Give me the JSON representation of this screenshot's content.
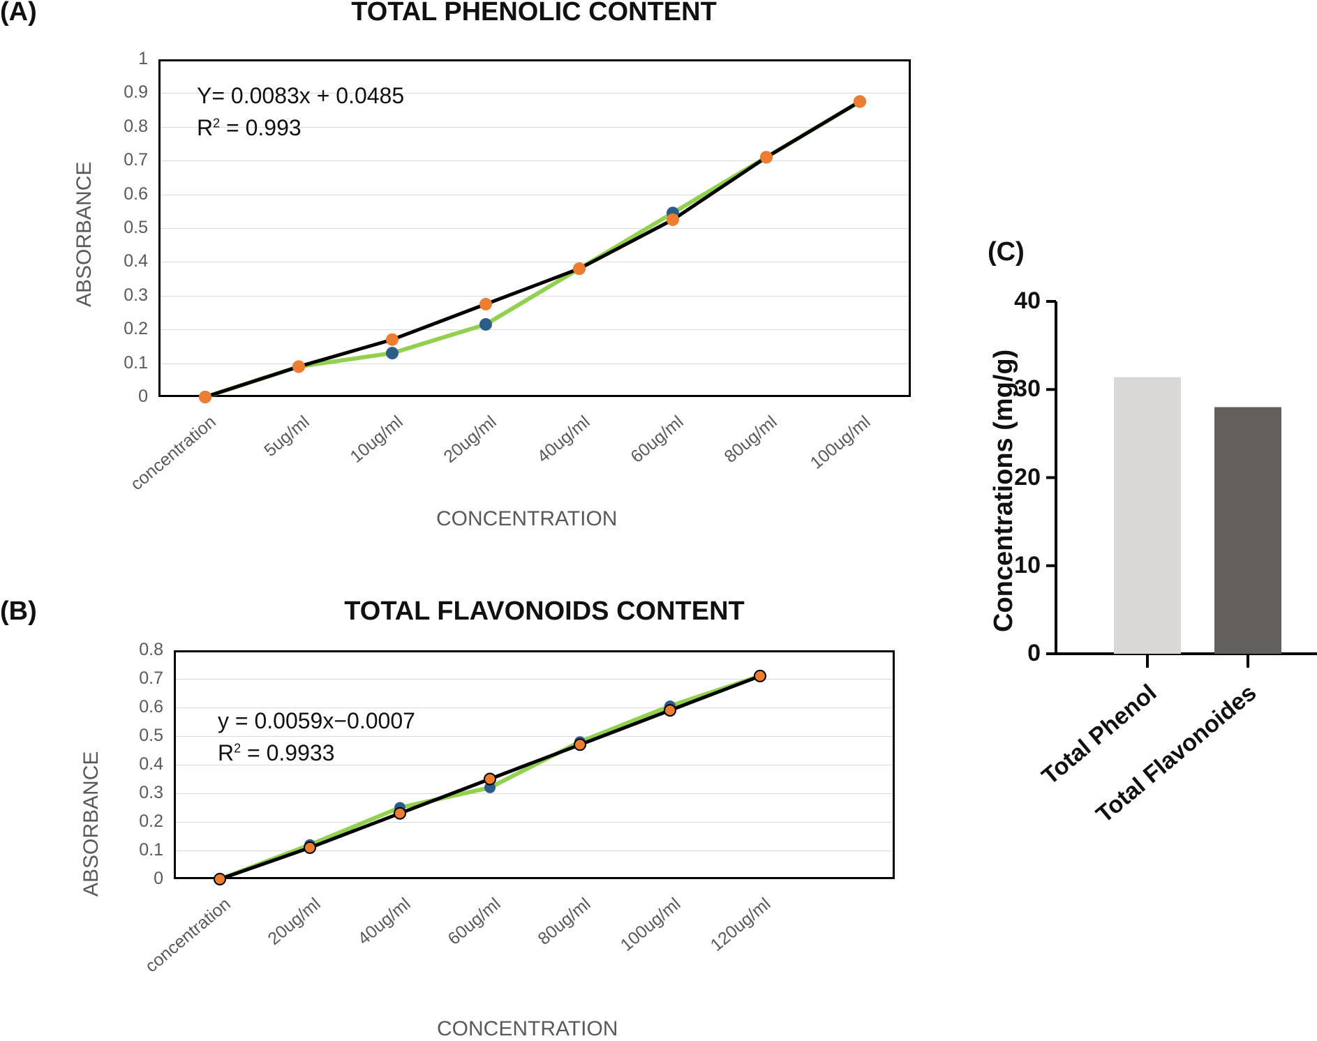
{
  "chart_data": [
    {
      "panel": "(A)",
      "type": "line",
      "title": "TOTAL PHENOLIC CONTENT",
      "xlabel": "CONCENTRATION",
      "ylabel": "ABSORBANCE",
      "categories": [
        "concentration",
        "5ug/ml",
        "10ug/ml",
        "20ug/ml",
        "40ug/ml",
        "60ug/ml",
        "80ug/ml",
        "100ug/ml"
      ],
      "ylim": [
        0,
        1
      ],
      "yticks": [
        "0",
        "0.1",
        "0.2",
        "0.3",
        "0.4",
        "0.5",
        "0.6",
        "0.7",
        "0.8",
        "0.9",
        "1"
      ],
      "equation": "Y= 0.0083x + 0.0485",
      "r2_prefix": "R",
      "r2_exp": "2",
      "r2_value": " = 0.993",
      "series": [
        {
          "name": "measured",
          "color": "#92d050",
          "marker": "#2e5c8a",
          "values": [
            0,
            0.09,
            0.13,
            0.215,
            0.38,
            0.545,
            0.71,
            0.875
          ]
        },
        {
          "name": "fitted",
          "color": "#000000",
          "marker": "#ed7d31",
          "values": [
            0,
            0.09,
            0.17,
            0.275,
            0.38,
            0.525,
            0.71,
            0.875
          ]
        }
      ]
    },
    {
      "panel": "(B)",
      "type": "line",
      "title": "TOTAL FLAVONOIDS CONTENT",
      "xlabel": "CONCENTRATION",
      "ylabel": "ABSORBANCE",
      "categories": [
        "concentration",
        "20ug/ml",
        "40ug/ml",
        "60ug/ml",
        "80ug/ml",
        "100ug/ml",
        "120ug/ml"
      ],
      "ylim": [
        0,
        0.8
      ],
      "yticks": [
        "0",
        "0.1",
        "0.2",
        "0.3",
        "0.4",
        "0.5",
        "0.6",
        "0.7",
        "0.8"
      ],
      "equation": "y = 0.0059x−0.0007",
      "r2_prefix": "R",
      "r2_exp": "2",
      "r2_value": " = 0.9933",
      "series": [
        {
          "name": "measured",
          "color": "#92d050",
          "marker": "#2e5c8a",
          "values": [
            0,
            0.12,
            0.25,
            0.32,
            0.48,
            0.605,
            0.71
          ]
        },
        {
          "name": "fitted",
          "color": "#000000",
          "marker": "#ed7d31",
          "values": [
            0,
            0.11,
            0.23,
            0.35,
            0.47,
            0.59,
            0.71
          ]
        }
      ]
    },
    {
      "panel": "(C)",
      "type": "bar",
      "ylabel": "Concentrations (mg/g)",
      "categories": [
        "Total Phenol",
        "Total Flavonoides"
      ],
      "values": [
        31.4,
        28.0
      ],
      "colors": [
        "#d9d8d6",
        "#625f5d"
      ],
      "ylim": [
        0,
        40
      ],
      "yticks": [
        "0",
        "10",
        "20",
        "30",
        "40"
      ]
    }
  ]
}
